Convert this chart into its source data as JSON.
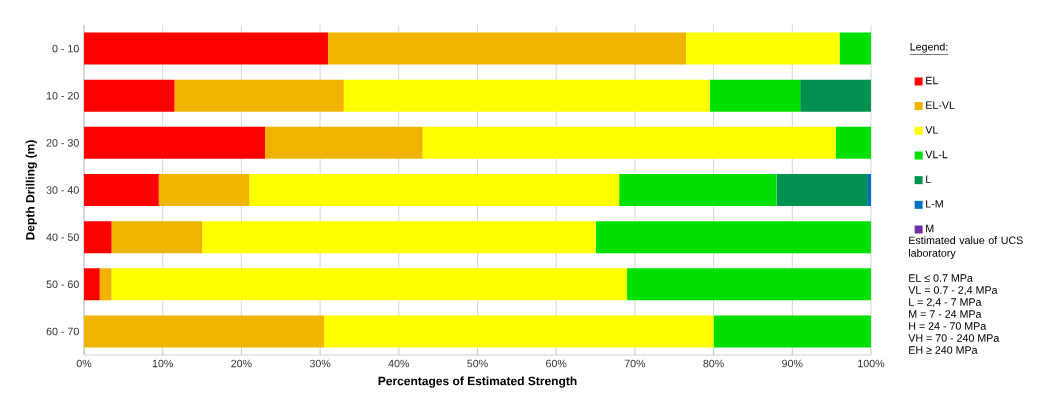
{
  "chart_data": {
    "type": "bar",
    "orientation": "horizontal",
    "stacked": true,
    "xlabel": "Percentages of Estimated Strength",
    "ylabel": "Depth Drilling (m)",
    "legend_title": "Legend:",
    "categories": [
      "0 - 10",
      "10 - 20",
      "20 - 30",
      "30 - 40",
      "40 - 50",
      "50 - 60",
      "60 - 70"
    ],
    "series": [
      {
        "name": "EL",
        "color": "#ff0000",
        "values": [
          31,
          11.5,
          23,
          9.5,
          3.5,
          2,
          0
        ]
      },
      {
        "name": "EL-VL",
        "color": "#f0b400",
        "values": [
          45.5,
          21.5,
          20,
          11.5,
          11.5,
          1.5,
          30.5
        ]
      },
      {
        "name": "VL",
        "color": "#ffff00",
        "values": [
          19.5,
          46.5,
          52.5,
          47,
          50,
          65.5,
          49.5
        ]
      },
      {
        "name": "VL-L",
        "color": "#00e000",
        "values": [
          4,
          11.5,
          4.5,
          20,
          35,
          31,
          20
        ]
      },
      {
        "name": "L",
        "color": "#009050",
        "values": [
          0,
          9,
          0,
          11.5,
          0,
          0,
          0
        ]
      },
      {
        "name": "L-M",
        "color": "#0070c0",
        "values": [
          0,
          0,
          0,
          0.5,
          0,
          0,
          0
        ]
      },
      {
        "name": "M",
        "color": "#7030a0",
        "values": [
          0,
          0,
          0,
          0,
          0,
          0,
          0
        ]
      }
    ],
    "xlim": [
      0,
      100
    ],
    "xticks": [
      {
        "value": 0,
        "label": "0%"
      },
      {
        "value": 10,
        "label": "10%"
      },
      {
        "value": 20,
        "label": "20%"
      },
      {
        "value": 30,
        "label": "30%"
      },
      {
        "value": 40,
        "label": "40%"
      },
      {
        "value": 50,
        "label": "50%"
      },
      {
        "value": 60,
        "label": "60%"
      },
      {
        "value": 70,
        "label": "70%"
      },
      {
        "value": 80,
        "label": "80%"
      },
      {
        "value": 90,
        "label": "90%"
      },
      {
        "value": 100,
        "label": "100%"
      }
    ],
    "grid": "x",
    "legend": "right",
    "annotations": [
      "Estimated value of UCS laboratory",
      "EL  ≤ 0.7 MPa",
      "VL  = 0.7 - 2,4 MPa",
      "L    = 2,4 - 7 MPa",
      "M  = 7 - 24 MPa",
      "H    = 24 - 70 MPa",
      "VH = 70 - 240 MPa",
      "EH ≥ 240 MPa"
    ]
  }
}
